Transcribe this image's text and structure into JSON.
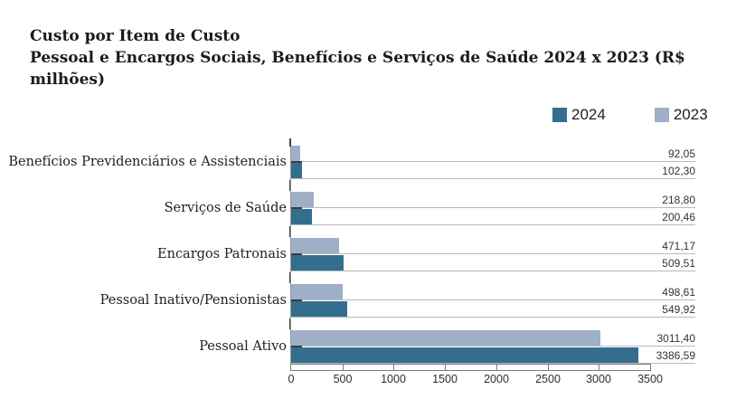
{
  "title": {
    "line1": "Custo por Item de Custo",
    "line2": "Pessoal e Encargos Sociais, Benefícios e Serviços de Saúde 2024 x 2023 (R$ milhões)"
  },
  "legend": [
    {
      "label": "2024",
      "color": "#346e8f"
    },
    {
      "label": "2023",
      "color": "#9fafc8"
    }
  ],
  "colors": {
    "bar_2024": "#346e8f",
    "bar_2023": "#9fafc8",
    "leader_line": "#b9b9b9",
    "axis_line": "#979797",
    "tick_dark": "#3c3c3c",
    "box_border": "#7c7c7c",
    "title_text": "#1b1b1b",
    "label_text": "#333333"
  },
  "chart_data": {
    "type": "bar",
    "orientation": "horizontal",
    "title": "Custo por Item de Custo",
    "subtitle": "Pessoal e Encargos Sociais, Benefícios e Serviços de Saúde 2024 x 2023 (R$ milhões)",
    "categories": [
      "Benefícios Previdenciários e Assistenciais",
      "Serviços de Saúde",
      "Encargos Patronais",
      "Pessoal Inativo/Pensionistas",
      "Pessoal Ativo"
    ],
    "series": [
      {
        "name": "2024",
        "color": "#346e8f",
        "values": [
          102.3,
          200.46,
          509.51,
          549.92,
          3386.59
        ],
        "labels": [
          "102,30",
          "200,46",
          "509,51",
          "549,92",
          "3386,59"
        ]
      },
      {
        "name": "2023",
        "color": "#9fafc8",
        "values": [
          92.05,
          218.8,
          471.17,
          498.61,
          3011.4
        ],
        "labels": [
          "92,05",
          "218,80",
          "471,17",
          "498,61",
          "3011,40"
        ]
      }
    ],
    "bar_order_top_to_bottom": [
      "2023",
      "2024"
    ],
    "xlim": [
      0,
      3500
    ],
    "x_ticks": [
      "0",
      "500",
      "1000",
      "1500",
      "2000",
      "2500",
      "3000",
      "3500"
    ],
    "value_format": "decimal comma (pt-BR)",
    "grid": "per-bar leader lines to right-aligned value labels",
    "legend_position": "top-right"
  }
}
